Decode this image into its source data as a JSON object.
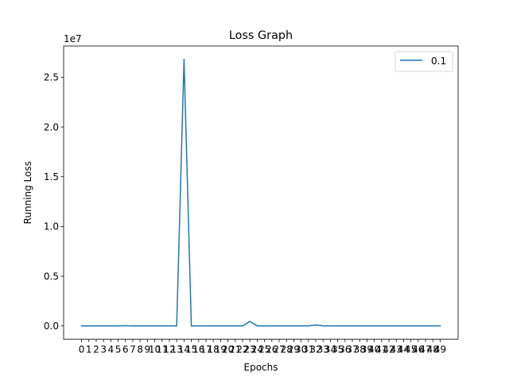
{
  "chart_data": {
    "type": "line",
    "title": "Loss Graph",
    "xlabel": "Epochs",
    "ylabel": "Running Loss",
    "y_offset_label": "1e7",
    "x": [
      0,
      1,
      2,
      3,
      4,
      5,
      6,
      7,
      8,
      9,
      10,
      11,
      12,
      13,
      14,
      15,
      16,
      17,
      18,
      19,
      20,
      21,
      22,
      23,
      24,
      25,
      26,
      27,
      28,
      29,
      30,
      31,
      32,
      33,
      34,
      35,
      36,
      37,
      38,
      39,
      40,
      41,
      42,
      43,
      44,
      45,
      46,
      47,
      48,
      49
    ],
    "x_tick_labels": [
      "0",
      "1",
      "2",
      "3",
      "4",
      "5",
      "6",
      "7",
      "8",
      "9",
      "10",
      "11",
      "12",
      "13",
      "14",
      "15",
      "16",
      "17",
      "18",
      "19",
      "20",
      "21",
      "22",
      "23",
      "24",
      "25",
      "26",
      "27",
      "28",
      "29",
      "30",
      "31",
      "32",
      "33",
      "34",
      "35",
      "36",
      "37",
      "38",
      "39",
      "40",
      "41",
      "42",
      "43",
      "44",
      "45",
      "46",
      "47",
      "48",
      "49"
    ],
    "series": [
      {
        "name": "0.1",
        "color": "#1f77b4",
        "values": [
          0,
          0,
          0,
          0,
          0,
          0,
          20000,
          0,
          0,
          0,
          0,
          0,
          0,
          0,
          26800000,
          0,
          0,
          0,
          0,
          0,
          0,
          0,
          0,
          450000,
          0,
          0,
          0,
          0,
          0,
          0,
          0,
          0,
          100000,
          0,
          0,
          0,
          0,
          0,
          0,
          0,
          0,
          0,
          0,
          0,
          0,
          0,
          0,
          0,
          0,
          0
        ]
      }
    ],
    "y_ticks": [
      0,
      5000000,
      10000000,
      15000000,
      20000000,
      25000000
    ],
    "y_tick_labels": [
      "0.0",
      "0.5",
      "1.0",
      "1.5",
      "2.0",
      "2.5"
    ],
    "ylim": [
      -1340000,
      28140000
    ],
    "xlim": [
      -2.45,
      51.45
    ],
    "legend_position": "top-right",
    "grid": false
  }
}
